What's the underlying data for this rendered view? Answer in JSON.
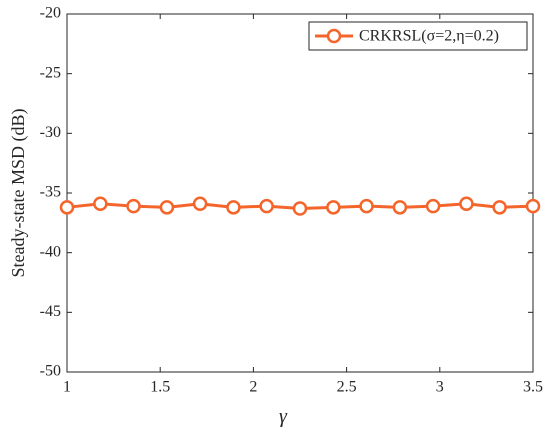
{
  "chart_data": {
    "type": "line",
    "x_label": "γ",
    "y_label": "Steady-state MSD (dB)",
    "x": [
      1,
      1.179,
      1.357,
      1.536,
      1.714,
      1.893,
      2.071,
      2.25,
      2.429,
      2.607,
      2.786,
      2.964,
      3.143,
      3.321,
      3.5
    ],
    "series": [
      {
        "name": "CRKRSL(σ=2,η=0.2)",
        "color": "#f4652c",
        "values": [
          -36.2,
          -35.9,
          -36.1,
          -36.2,
          -35.9,
          -36.2,
          -36.1,
          -36.3,
          -36.2,
          -36.1,
          -36.2,
          -36.1,
          -35.9,
          -36.2,
          -36.1
        ]
      }
    ],
    "xlim": [
      1,
      3.5
    ],
    "xticks": [
      1,
      1.5,
      2,
      2.5,
      3,
      3.5
    ],
    "ylim": [
      -50,
      -20
    ],
    "yticks": [
      -50,
      -45,
      -40,
      -35,
      -30,
      -25,
      -20
    ],
    "grid": false,
    "legend": "top-right"
  }
}
